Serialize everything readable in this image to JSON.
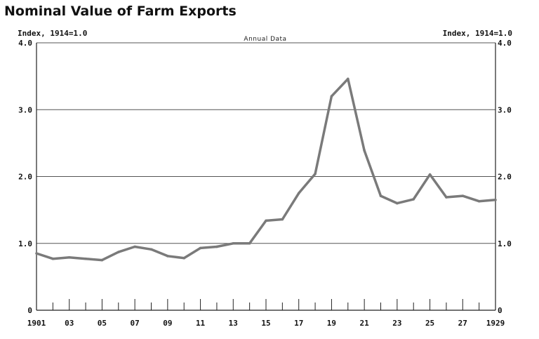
{
  "chart_data": {
    "type": "line",
    "title": "Nominal Value of Farm Exports",
    "subtitle": "Annual Data",
    "ylabel_left": "Index, 1914=1.0",
    "ylabel_right": "Index, 1914=1.0",
    "ylim": [
      0,
      4.0
    ],
    "yticks": [
      0,
      1.0,
      2.0,
      3.0,
      4.0
    ],
    "ytick_labels": [
      "0",
      "1.0",
      "2.0",
      "3.0",
      "4.0"
    ],
    "xlim": [
      1901,
      1929
    ],
    "xtick_labels": [
      {
        "year": 1901,
        "label": "1901"
      },
      {
        "year": 1903,
        "label": "03"
      },
      {
        "year": 1905,
        "label": "05"
      },
      {
        "year": 1907,
        "label": "07"
      },
      {
        "year": 1909,
        "label": "09"
      },
      {
        "year": 1911,
        "label": "11"
      },
      {
        "year": 1913,
        "label": "13"
      },
      {
        "year": 1915,
        "label": "15"
      },
      {
        "year": 1917,
        "label": "17"
      },
      {
        "year": 1919,
        "label": "19"
      },
      {
        "year": 1921,
        "label": "21"
      },
      {
        "year": 1923,
        "label": "23"
      },
      {
        "year": 1925,
        "label": "25"
      },
      {
        "year": 1927,
        "label": "27"
      },
      {
        "year": 1929,
        "label": "1929"
      }
    ],
    "grid": true,
    "x": [
      1901,
      1902,
      1903,
      1904,
      1905,
      1906,
      1907,
      1908,
      1909,
      1910,
      1911,
      1912,
      1913,
      1914,
      1915,
      1916,
      1917,
      1918,
      1919,
      1920,
      1921,
      1922,
      1923,
      1924,
      1925,
      1926,
      1927,
      1928,
      1929
    ],
    "series": [
      {
        "values": [
          0.85,
          0.77,
          0.79,
          0.77,
          0.75,
          0.87,
          0.95,
          0.91,
          0.81,
          0.78,
          0.93,
          0.95,
          1.0,
          1.0,
          1.34,
          1.36,
          1.75,
          2.04,
          3.2,
          3.46,
          2.39,
          1.71,
          1.6,
          1.66,
          2.03,
          1.69,
          1.71,
          1.63,
          1.65
        ],
        "color": "#7a7a7a"
      }
    ]
  }
}
